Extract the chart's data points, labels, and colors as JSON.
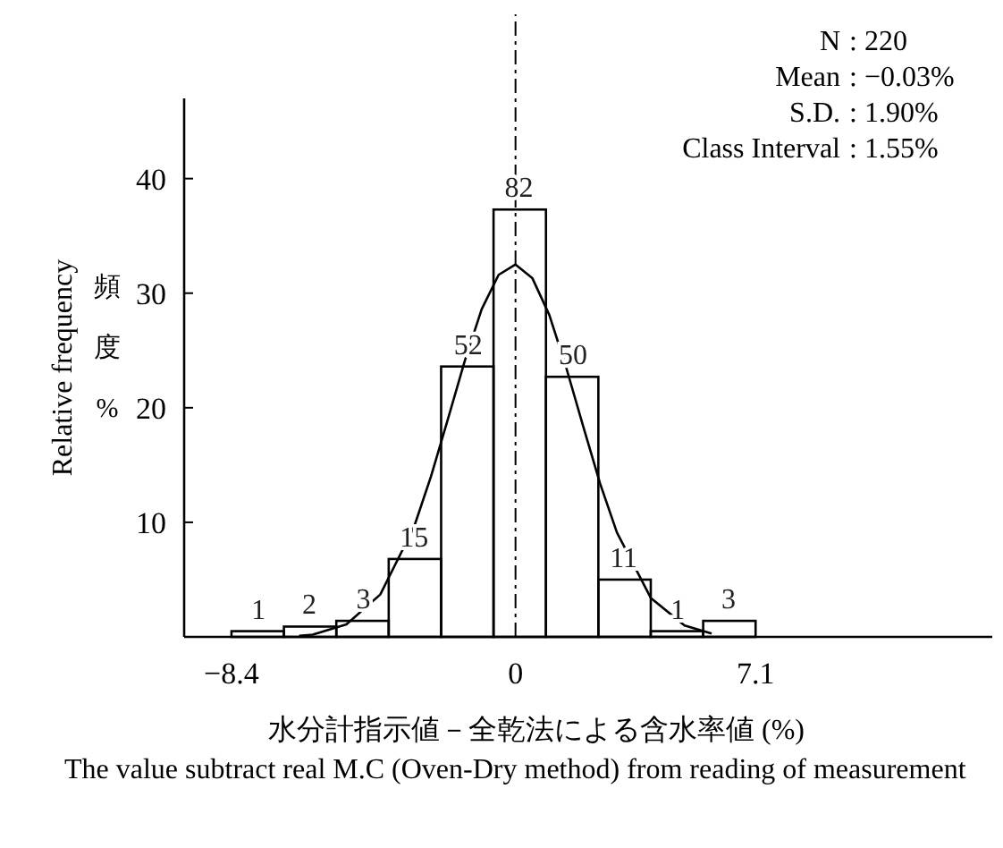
{
  "chart_data": {
    "type": "histogram",
    "xlabel": "水分計指示値－全乾法による含水率値 (%)",
    "ylabel": "Relative frequency",
    "bins": [
      -8.4,
      -6.85,
      -5.3,
      -3.75,
      -2.2,
      -0.65,
      0.9,
      2.45,
      4.0,
      5.55,
      7.1
    ],
    "series": [
      {
        "color": "#000000",
        "values": [
          0.5,
          0.9,
          1.4,
          6.8,
          23.6,
          37.3,
          22.7,
          5.0,
          0.5,
          1.4
        ]
      },
      {
        "type": "line",
        "color": "#000000",
        "x": [
          -6.4,
          -6,
          -5,
          -4,
          -3,
          -2.5,
          -2,
          -1.5,
          -1,
          -0.5,
          0,
          0.5,
          1,
          1.5,
          2,
          2.5,
          3,
          4,
          5,
          5.8
        ],
        "values": [
          0.1,
          0.2,
          1.1,
          3.7,
          9.6,
          14,
          19,
          24.1,
          28.6,
          31.6,
          32.5,
          31.3,
          28.1,
          23.5,
          18.4,
          13.4,
          9.1,
          3.4,
          1,
          0.3
        ]
      }
    ],
    "xlim": [
      -9.8,
      14.1
    ],
    "ylim": [
      0,
      47
    ],
    "xticks": [
      -8.4,
      0,
      7.1
    ],
    "yticks": [
      10,
      20,
      30,
      40
    ],
    "ref_lines": [
      {
        "axis": "x",
        "value": 0,
        "line_style": "dashed"
      }
    ],
    "annotations": [
      "N : 220",
      "Mean : −0.03%",
      "S.D. : 1.90%",
      "Class Interval : 1.55%",
      "頻度%",
      "The value subtract real M.C (Oven-Dry method) from reading of measurement",
      {
        "text": "1",
        "x": -7.6,
        "y": 0.5
      },
      {
        "text": "2",
        "x": -6.1,
        "y": 0.9
      },
      {
        "text": "3",
        "x": -4.5,
        "y": 1.4
      },
      {
        "text": "15",
        "x": -3,
        "y": 6.8
      },
      {
        "text": "52",
        "x": -1.4,
        "y": 23.6
      },
      {
        "text": "82",
        "x": 0.1,
        "y": 37.3
      },
      {
        "text": "50",
        "x": 1.7,
        "y": 22.7
      },
      {
        "text": "11",
        "x": 3.2,
        "y": 5.0
      },
      {
        "text": "1",
        "x": 4.8,
        "y": 0.5
      },
      {
        "text": "3",
        "x": 6.3,
        "y": 1.4
      }
    ],
    "grid": false
  }
}
